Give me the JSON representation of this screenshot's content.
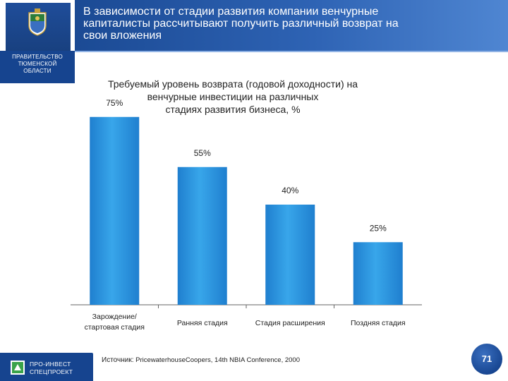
{
  "header": {
    "title_lines": [
      "В зависимости от стадии развития компании венчурные",
      "капиталисты рассчитывают получить различный возврат на",
      "свои вложения"
    ]
  },
  "sidebar": {
    "gov_lines": [
      "ПРАВИТЕЛЬСТВО",
      "ТЮМЕНСКОЙ",
      "ОБЛАСТИ"
    ],
    "org_lines": [
      "ПРО-ИНВЕСТ",
      "СПЕЦПРОЕКТ"
    ]
  },
  "chart_data": {
    "type": "bar",
    "title_lines": [
      "Требуемый уровень возврата (годовой доходности) на",
      "венчурные инвестиции на различных",
      "стадиях развития бизнеса, %"
    ],
    "categories": [
      [
        "Зарождение/",
        "стартовая стадия"
      ],
      [
        "Ранняя стадия"
      ],
      [
        "Стадия расширения"
      ],
      [
        "Поздняя стадия"
      ]
    ],
    "values": [
      75,
      55,
      40,
      25
    ],
    "value_labels": [
      "75%",
      "55%",
      "40%",
      "25%"
    ],
    "ylim": [
      0,
      80
    ],
    "grid": false,
    "bar_color": "#2f9be3"
  },
  "footer": {
    "source_label": "Источник:",
    "source_text": "PricewaterhouseCoopers, 14th NBIA Conference, 2000",
    "page_number": "71"
  }
}
